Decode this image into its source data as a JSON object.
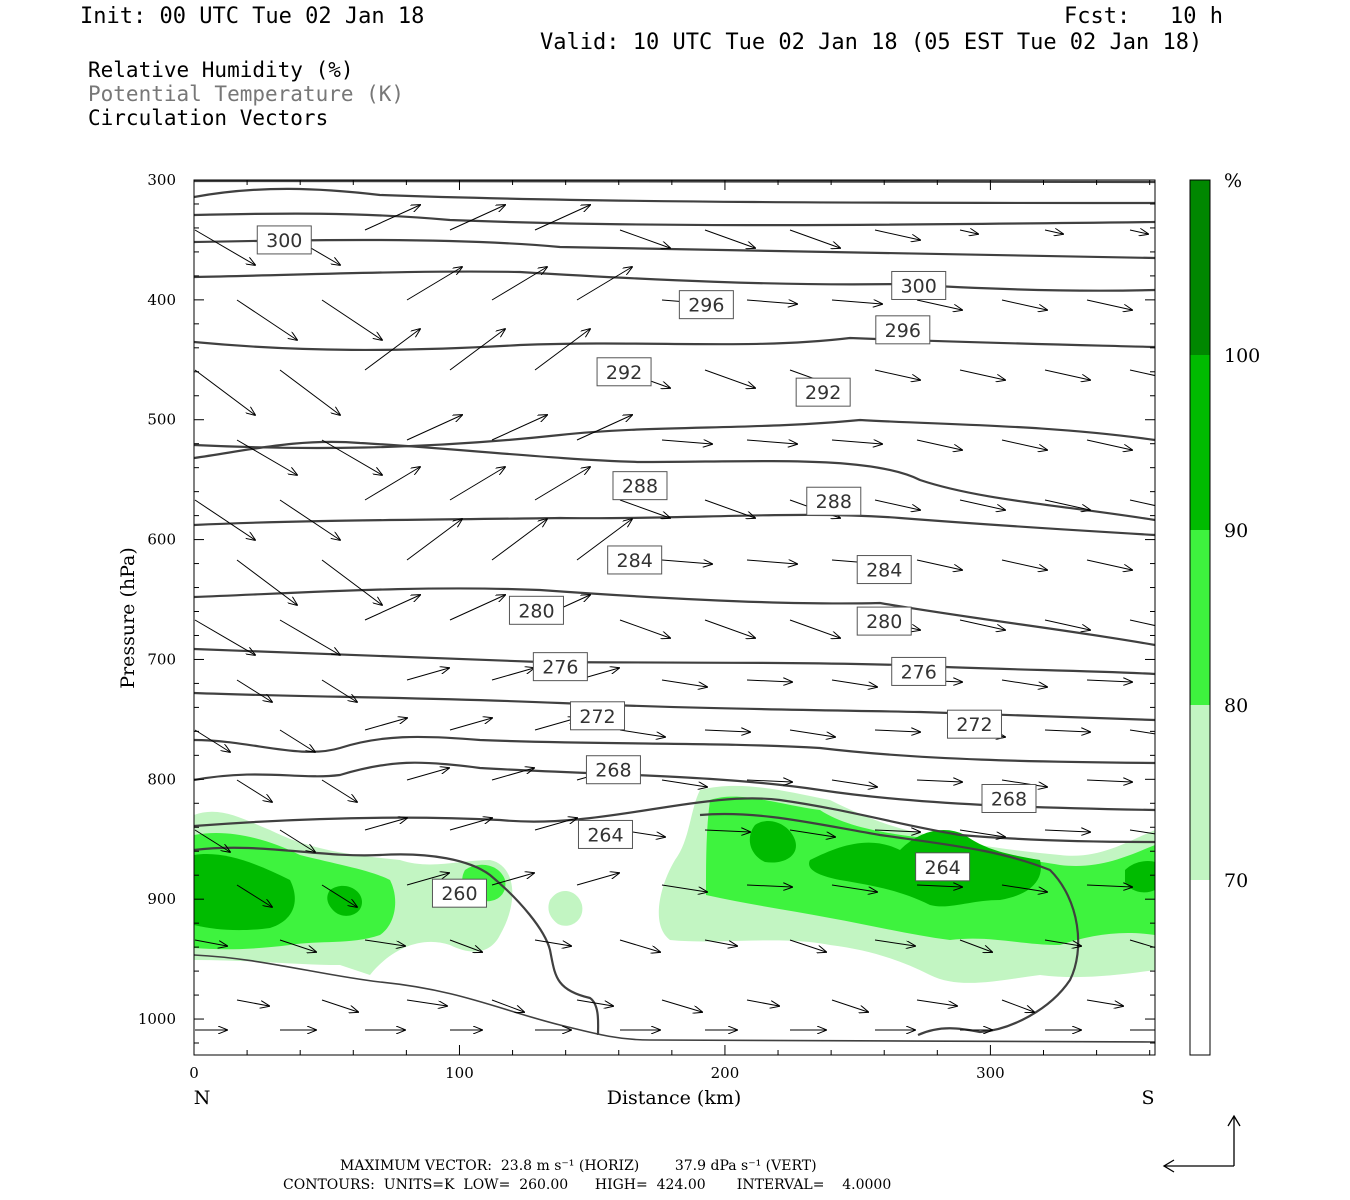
{
  "header": {
    "init": "Init: 00 UTC Tue 02 Jan 18",
    "fcst": "Fcst:   10 h",
    "valid": "Valid: 10 UTC Tue 02 Jan 18 (05 EST Tue 02 Jan 18)"
  },
  "legend": {
    "rh": "Relative Humidity (%)",
    "theta": "Potential Temperature (K)",
    "vectors": "Circulation Vectors"
  },
  "footer": {
    "max_vector": "MAXIMUM VECTOR:  23.8 m s⁻¹ (HORIZ)        37.9 dPa s⁻¹ (VERT)",
    "contours": "CONTOURS:  UNITS=K  LOW=  260.00      HIGH=  424.00       INTERVAL=    4.0000"
  },
  "colors": {
    "rh_70_80": "#c2f5c2",
    "rh_80_90": "#3ef33e",
    "rh_90_100": "#00bb00",
    "rh_100": "#008700",
    "contour": "#404040"
  },
  "chart_data": {
    "type": "cross-section",
    "xlabel": "Distance (km)",
    "ylabel": "Pressure (hPa)",
    "xlim": [
      0,
      362
    ],
    "ylim": [
      1030,
      300
    ],
    "x_ticks": [
      0,
      100,
      200,
      300
    ],
    "y_ticks": [
      300,
      400,
      500,
      600,
      700,
      800,
      900,
      1000
    ],
    "x_end_labels": {
      "left": "N",
      "right": "S"
    },
    "colorbar": {
      "unit": "%",
      "levels": [
        100,
        90,
        80,
        70
      ]
    },
    "contour_labels": [
      {
        "text": "300",
        "x": 34,
        "p": 350
      },
      {
        "text": "300",
        "x": 273,
        "p": 388
      },
      {
        "text": "296",
        "x": 193,
        "p": 404
      },
      {
        "text": "296",
        "x": 267,
        "p": 425
      },
      {
        "text": "292",
        "x": 162,
        "p": 460
      },
      {
        "text": "292",
        "x": 237,
        "p": 477
      },
      {
        "text": "288",
        "x": 168,
        "p": 555
      },
      {
        "text": "288",
        "x": 241,
        "p": 568
      },
      {
        "text": "284",
        "x": 166,
        "p": 617
      },
      {
        "text": "284",
        "x": 260,
        "p": 625
      },
      {
        "text": "280",
        "x": 129,
        "p": 659
      },
      {
        "text": "280",
        "x": 260,
        "p": 668
      },
      {
        "text": "276",
        "x": 138,
        "p": 706
      },
      {
        "text": "276",
        "x": 273,
        "p": 710
      },
      {
        "text": "272",
        "x": 152,
        "p": 747
      },
      {
        "text": "272",
        "x": 294,
        "p": 754
      },
      {
        "text": "268",
        "x": 158,
        "p": 792
      },
      {
        "text": "268",
        "x": 307,
        "p": 816
      },
      {
        "text": "264",
        "x": 155,
        "p": 846
      },
      {
        "text": "264",
        "x": 282,
        "p": 873
      },
      {
        "text": "260",
        "x": 100,
        "p": 895
      }
    ]
  }
}
